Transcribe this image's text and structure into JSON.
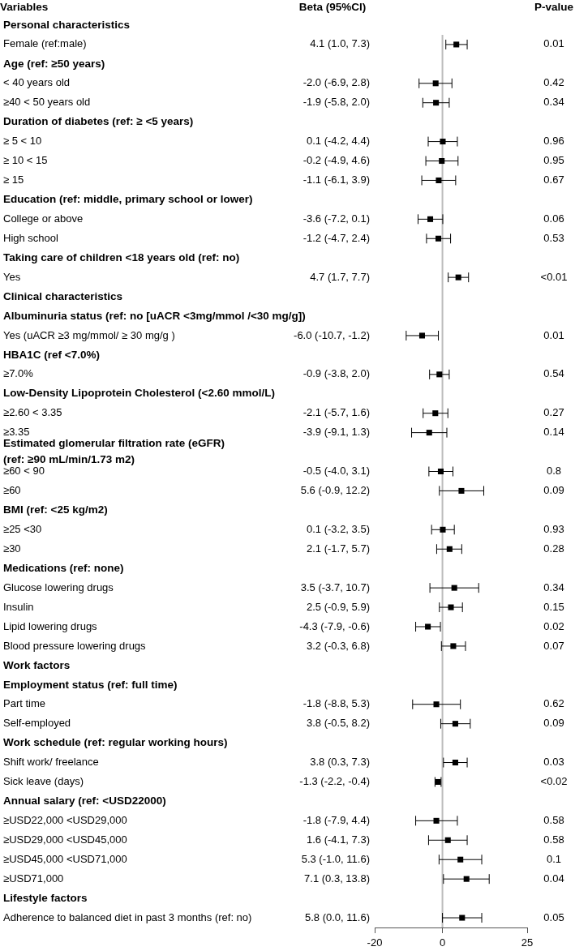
{
  "chart_data": {
    "type": "scatter",
    "orientation": "horizontal",
    "ylabel": "Variables",
    "categories": [
      "Personal characteristics",
      "Female (ref:male)",
      "Age (ref: ≥50 years)",
      "< 40 years old",
      "≥40 < 50 years old",
      "Duration of diabetes (ref: ≥ <5 years)",
      "≥ 5 < 10",
      "≥ 10 < 15",
      "≥ 15",
      "Education (ref: middle, primary school or lower)",
      "College or above",
      "High school",
      "Taking care of children <18 years old (ref: no)",
      "Yes",
      "Clinical characteristics",
      "Albuminuria status (ref: no [uACR <3mg/mmol /<30 mg/g])",
      "Yes (uACR ≥3 mg/mmol/ ≥ 30 mg/g )",
      "HBA1C (ref <7.0%)",
      "≥7.0%",
      "Low-Density Lipoprotein Cholesterol (<2.60 mmol/L)",
      "≥2.60 < 3.35",
      "≥3.35",
      "Estimated glomerular filtration rate (eGFR)\n(ref: ≥90 mL/min/1.73 m2)",
      "≥60 < 90",
      "≥60",
      "BMI (ref: <25 kg/m2)",
      "≥25 <30",
      "≥30",
      "Medications (ref: none)",
      "Glucose lowering drugs",
      "Insulin",
      "Lipid lowering drugs",
      "Blood pressure lowering drugs",
      "Work factors",
      "Employment status (ref: full time)",
      "Part time",
      "Self-employed",
      "Work schedule (ref: regular working hours)",
      "Shift work/ freelance",
      "Sick leave (days)",
      "Annual salary (ref: <USD22000)",
      "≥USD22,000 <USD29,000",
      "≥USD29,000 <USD45,000",
      "≥USD45,000 <USD71,000",
      "≥USD71,000",
      "Lifestyle factors",
      "Adherence to balanced diet in past 3 months (ref: no)"
    ],
    "values": [
      null,
      4.1,
      null,
      -2.0,
      -1.9,
      null,
      0.1,
      -0.2,
      -1.1,
      null,
      -3.6,
      -1.2,
      null,
      4.7,
      null,
      null,
      -6.0,
      null,
      -0.9,
      null,
      -2.1,
      -3.9,
      null,
      -0.5,
      5.6,
      null,
      0.1,
      2.1,
      null,
      3.5,
      2.5,
      -4.3,
      3.2,
      null,
      null,
      -1.8,
      3.8,
      null,
      3.8,
      -1.3,
      null,
      -1.8,
      1.6,
      5.3,
      7.1,
      null,
      5.8
    ],
    "errors": [
      null,
      [
        1.0,
        7.3
      ],
      null,
      [
        -6.9,
        2.8
      ],
      [
        -5.8,
        2.0
      ],
      null,
      [
        -4.2,
        4.4
      ],
      [
        -4.9,
        4.6
      ],
      [
        -6.1,
        3.9
      ],
      null,
      [
        -7.2,
        0.1
      ],
      [
        -4.7,
        2.4
      ],
      null,
      [
        1.7,
        7.7
      ],
      null,
      null,
      [
        -10.7,
        -1.2
      ],
      null,
      [
        -3.8,
        2.0
      ],
      null,
      [
        -5.7,
        1.6
      ],
      [
        -9.1,
        1.3
      ],
      null,
      [
        -4.0,
        3.1
      ],
      [
        -0.9,
        12.2
      ],
      null,
      [
        -3.2,
        3.5
      ],
      [
        -1.7,
        5.7
      ],
      null,
      [
        -3.7,
        10.7
      ],
      [
        -0.9,
        5.9
      ],
      [
        -7.9,
        -0.6
      ],
      [
        -0.3,
        6.8
      ],
      null,
      null,
      [
        -8.8,
        5.3
      ],
      [
        -0.5,
        8.2
      ],
      null,
      [
        0.3,
        7.3
      ],
      [
        -2.2,
        -0.4
      ],
      null,
      [
        -7.9,
        4.4
      ],
      [
        -4.1,
        7.3
      ],
      [
        -1.0,
        11.6
      ],
      [
        0.3,
        13.8
      ],
      null,
      [
        0.0,
        11.6
      ]
    ],
    "value_labels": [
      null,
      "4.1 (1.0, 7.3)",
      null,
      "-2.0 (-6.9, 2.8)",
      "-1.9 (-5.8, 2.0)",
      null,
      "0.1 (-4.2, 4.4)",
      "-0.2 (-4.9, 4.6)",
      "-1.1 (-6.1, 3.9)",
      null,
      "-3.6 (-7.2, 0.1)",
      "-1.2 (-4.7, 2.4)",
      null,
      "4.7 (1.7, 7.7)",
      null,
      null,
      "-6.0 (-10.7, -1.2)",
      null,
      "-0.9 (-3.8, 2.0)",
      null,
      "-2.1 (-5.7, 1.6)",
      "-3.9 (-9.1, 1.3)",
      null,
      "-0.5 (-4.0, 3.1)",
      "5.6 (-0.9, 12.2)",
      null,
      "0.1 (-3.2, 3.5)",
      "2.1 (-1.7, 5.7)",
      null,
      "3.5 (-3.7, 10.7)",
      "2.5 (-0.9, 5.9)",
      "-4.3 (-7.9, -0.6)",
      "3.2 (-0.3, 6.8)",
      null,
      null,
      "-1.8 (-8.8, 5.3)",
      "3.8 (-0.5, 8.2)",
      null,
      "3.8 (0.3, 7.3)",
      "-1.3 (-2.2, -0.4)",
      null,
      "-1.8 (-7.9, 4.4)",
      "1.6 (-4.1, 7.3)",
      "5.3 (-1.0, 11.6)",
      "7.1 (0.3, 13.8)",
      null,
      "5.8 (0.0, 11.6)"
    ],
    "color": "#000000",
    "marker": "square",
    "xlim": [
      -20,
      25
    ],
    "xticks": [
      -20,
      0,
      25
    ],
    "ref_lines": [
      {
        "axis": "x",
        "value": 0,
        "color": "#bbbbbb"
      }
    ],
    "annotations": [
      "Beta (95%CI)",
      "P-value",
      "0.01",
      "0.42",
      "0.34",
      "0.96",
      "0.95",
      "0.67",
      "0.06",
      "0.53",
      "<0.01",
      "0.01",
      "0.54",
      "0.27",
      "0.14",
      "0.8",
      "0.09",
      "0.93",
      "0.28",
      "0.34",
      "0.15",
      "0.02",
      "0.07",
      "0.62",
      "0.09",
      "0.03",
      "<0.02",
      "0.58",
      "0.58",
      "0.1",
      "0.04",
      "0.05"
    ]
  }
}
